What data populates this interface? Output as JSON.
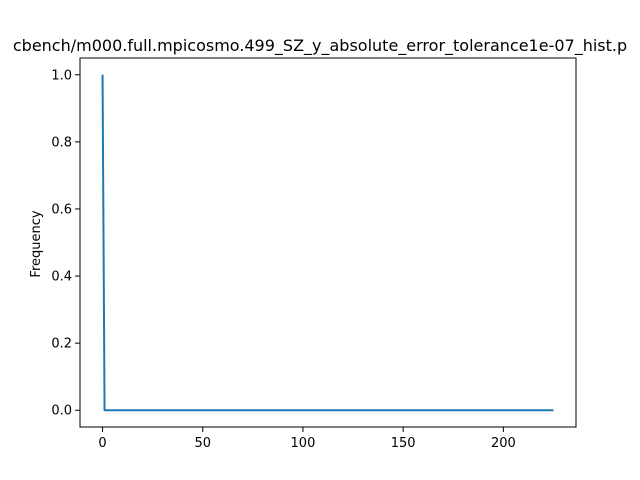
{
  "chart_data": {
    "type": "line",
    "title": "cbench/m000.full.mpicosmo.499_SZ_y_absolute_error_tolerance1e-07_hist.p",
    "xlabel": "",
    "ylabel": "Frequency",
    "xlim": [
      -11.25,
      236.25
    ],
    "ylim": [
      -0.05,
      1.05
    ],
    "xticks": [
      0,
      50,
      100,
      150,
      200
    ],
    "yticks": [
      0.0,
      0.2,
      0.4,
      0.6,
      0.8,
      1.0
    ],
    "xtick_labels": [
      "0",
      "50",
      "100",
      "150",
      "200"
    ],
    "ytick_labels": [
      "0.0",
      "0.2",
      "0.4",
      "0.6",
      "0.8",
      "1.0"
    ],
    "grid": false,
    "series": [
      {
        "color": "#1f77b4",
        "x": [
          0,
          1,
          225
        ],
        "y": [
          1.0,
          0.0,
          0.0
        ]
      }
    ]
  }
}
